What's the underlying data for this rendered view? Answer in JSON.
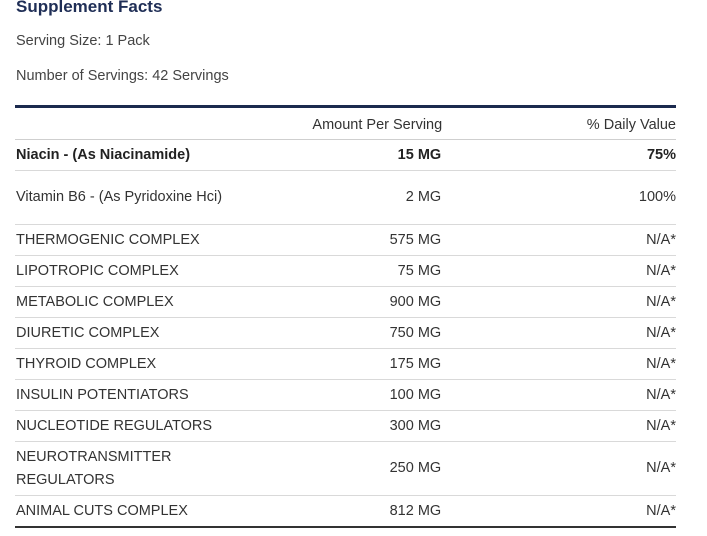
{
  "title": "Supplement Facts",
  "serving_size": "Serving Size: 1 Pack",
  "servings": "Number of Servings: 42 Servings",
  "columns": {
    "amount": "Amount Per Serving",
    "dv": "% Daily Value"
  },
  "rows": [
    {
      "name": "Niacin - (As Niacinamide)",
      "amount": "15 MG",
      "dv": "75%"
    },
    {
      "name": "Vitamin B6 - (As Pyridoxine Hci)",
      "amount": "2 MG",
      "dv": "100%"
    },
    {
      "name": "THERMOGENIC COMPLEX",
      "amount": "575 MG",
      "dv": "N/A*"
    },
    {
      "name": "LIPOTROPIC COMPLEX",
      "amount": "75 MG",
      "dv": "N/A*"
    },
    {
      "name": "METABOLIC COMPLEX",
      "amount": "900 MG",
      "dv": "N/A*"
    },
    {
      "name": "DIURETIC COMPLEX",
      "amount": "750 MG",
      "dv": "N/A*"
    },
    {
      "name": "THYROID COMPLEX",
      "amount": "175 MG",
      "dv": "N/A*"
    },
    {
      "name": "INSULIN POTENTIATORS",
      "amount": "100 MG",
      "dv": "N/A*"
    },
    {
      "name": "NUCLEOTIDE REGULATORS",
      "amount": "300 MG",
      "dv": "N/A*"
    },
    {
      "name": "NEUROTRANSMITTER REGULATORS",
      "amount": "250 MG",
      "dv": "N/A*"
    },
    {
      "name": "ANIMAL CUTS COMPLEX",
      "amount": "812 MG",
      "dv": "N/A*"
    }
  ]
}
